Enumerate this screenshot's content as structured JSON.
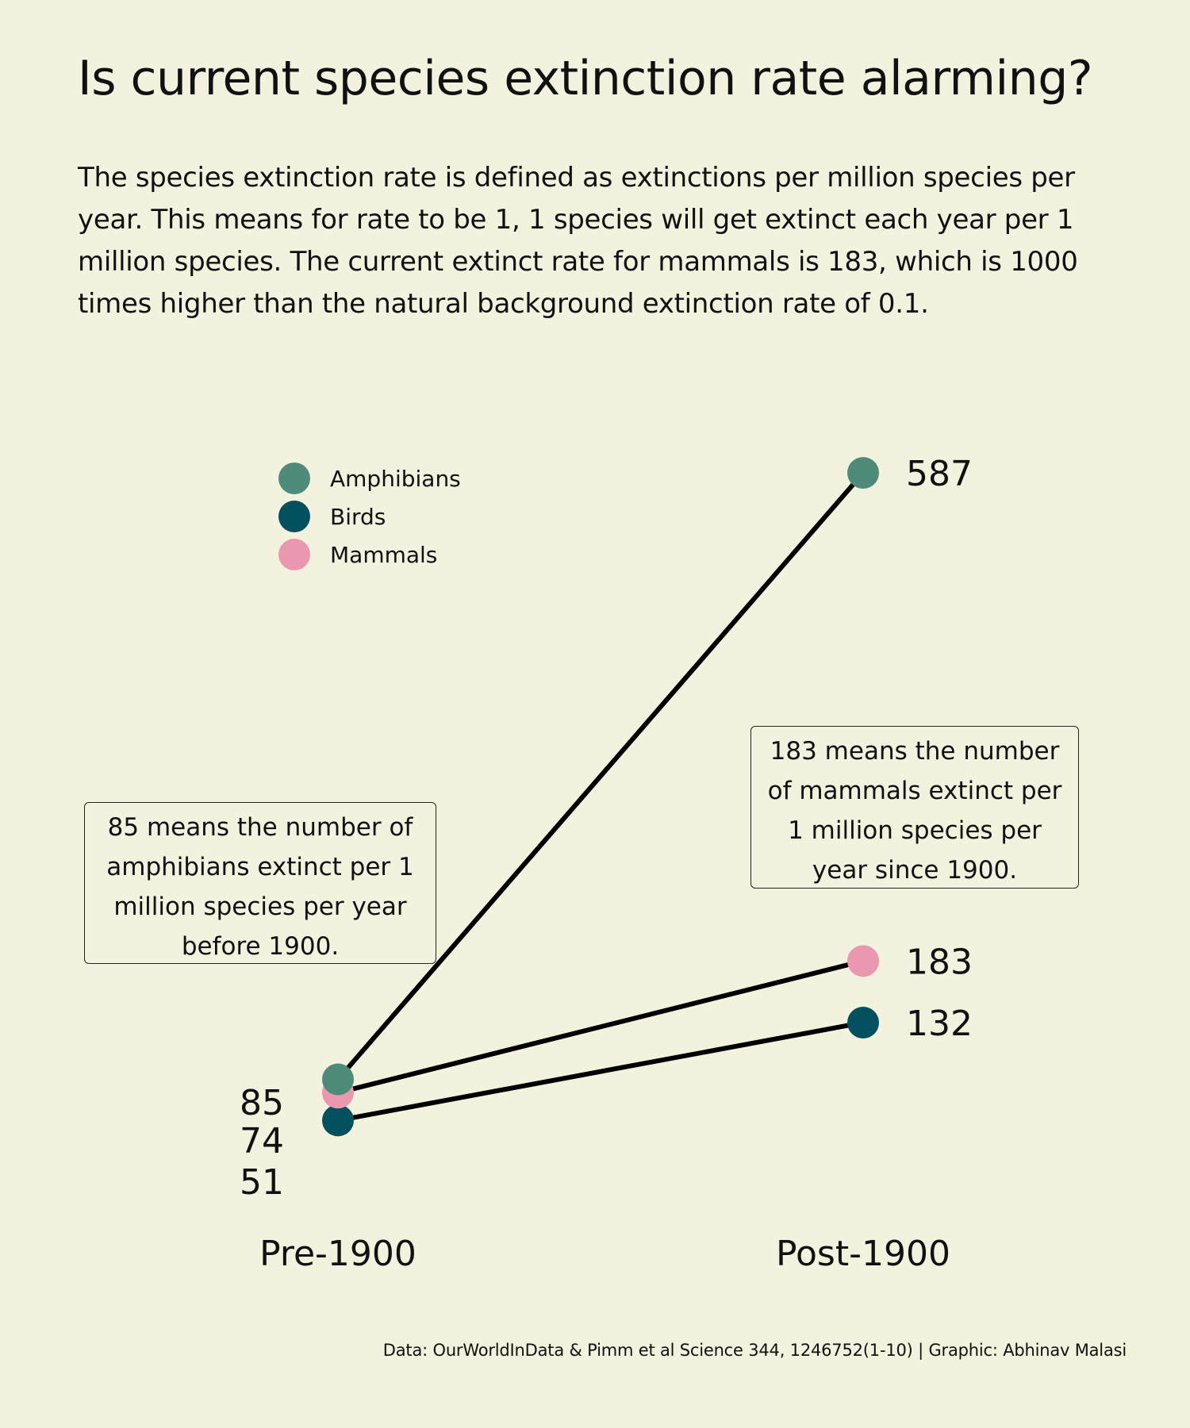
{
  "title": "Is current species extinction rate alarming?",
  "subtitle": "The species extinction rate is defined as extinctions per million species per year. This means for rate to be 1, 1 species will get extinct each year per 1 million species. The current extinct rate for mammals is 183, which is 1000 times higher than the natural background extinction rate of 0.1.",
  "chart_data": {
    "type": "line",
    "categories": [
      "Pre-1900",
      "Post-1900"
    ],
    "series": [
      {
        "name": "Amphibians",
        "values": [
          85,
          587
        ],
        "color": "#4e8b7b"
      },
      {
        "name": "Birds",
        "values": [
          51,
          132
        ],
        "color": "#03505f"
      },
      {
        "name": "Mammals",
        "values": [
          74,
          183
        ],
        "color": "#ea98b0"
      }
    ],
    "ylim": [
      0,
      600
    ],
    "grid": false,
    "legend_position": "top-left",
    "line_color": "#000000"
  },
  "annotations": {
    "left": "85 means the number of amphibians extinct per 1 million species per year before 1900.",
    "right": "183 means the number of mammals extinct per 1 million species per year since 1900."
  },
  "source": "Data: OurWorldInData & Pimm et al Science 344, 1246752(1-10) | Graphic: Abhinav Malasi"
}
